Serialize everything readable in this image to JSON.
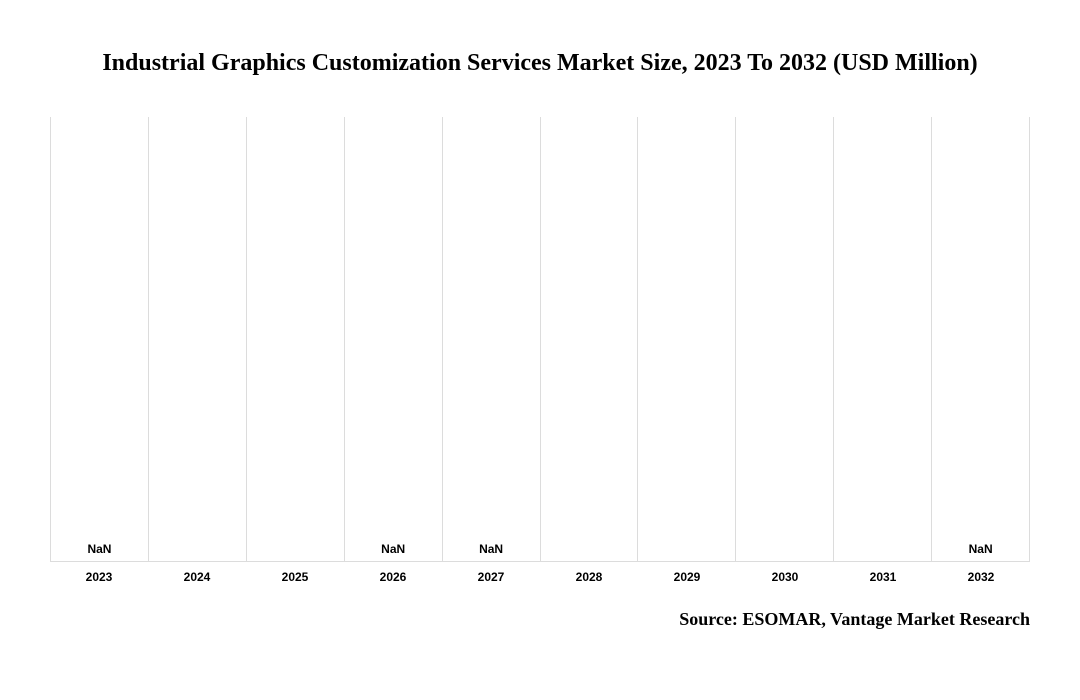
{
  "chart": {
    "type": "bar",
    "title": "Industrial Graphics Customization Services Market Size, 2023 To 2032 (USD Million)",
    "title_fontsize": 24,
    "title_color": "#000000",
    "categories": [
      "2023",
      "2024",
      "2025",
      "2026",
      "2027",
      "2028",
      "2029",
      "2030",
      "2031",
      "2032"
    ],
    "values": [
      "NaN",
      "",
      "",
      "NaN",
      "NaN",
      "",
      "",
      "",
      "",
      "NaN"
    ],
    "value_label_fontsize": 12,
    "x_tick_fontsize": 12,
    "background_color": "#ffffff",
    "grid_color": "#dcdcdc",
    "border_color": "#dcdcdc",
    "source": "Source: ESOMAR, Vantage Market Research",
    "source_fontsize": 18
  }
}
